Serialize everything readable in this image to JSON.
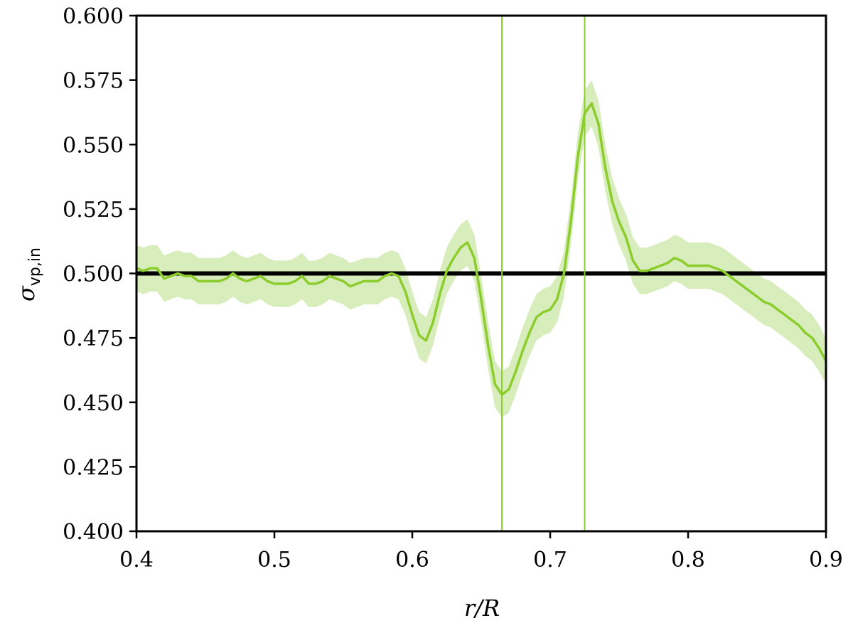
{
  "chart_data": {
    "type": "line",
    "xlabel": "r/R",
    "ylabel": "σvp,in",
    "ylabel_main": "σ",
    "ylabel_sub": "vp,in",
    "xlim": [
      0.4,
      0.9
    ],
    "ylim": [
      0.4,
      0.6
    ],
    "x_ticks": [
      0.4,
      0.5,
      0.6,
      0.7,
      0.8,
      0.9
    ],
    "x_tick_labels": [
      "0.4",
      "0.5",
      "0.6",
      "0.7",
      "0.8",
      "0.9"
    ],
    "y_ticks": [
      0.4,
      0.425,
      0.45,
      0.475,
      0.5,
      0.525,
      0.55,
      0.575,
      0.6
    ],
    "y_tick_labels": [
      "0.400",
      "0.425",
      "0.450",
      "0.475",
      "0.500",
      "0.525",
      "0.550",
      "0.575",
      "0.600"
    ],
    "grid": false,
    "colors": {
      "series": "#8ccc2c",
      "band": "#d8edbc",
      "reference": "#000000"
    },
    "reference_line": {
      "y": 0.5
    },
    "vertical_lines": [
      0.665,
      0.725
    ],
    "series": [
      {
        "x": [
          0.4,
          0.405,
          0.41,
          0.415,
          0.42,
          0.425,
          0.43,
          0.435,
          0.44,
          0.445,
          0.45,
          0.455,
          0.46,
          0.465,
          0.47,
          0.475,
          0.48,
          0.485,
          0.49,
          0.495,
          0.5,
          0.505,
          0.51,
          0.515,
          0.52,
          0.525,
          0.53,
          0.535,
          0.54,
          0.545,
          0.55,
          0.555,
          0.56,
          0.565,
          0.57,
          0.575,
          0.58,
          0.585,
          0.59,
          0.595,
          0.6,
          0.605,
          0.61,
          0.615,
          0.62,
          0.625,
          0.63,
          0.635,
          0.64,
          0.645,
          0.65,
          0.655,
          0.66,
          0.665,
          0.67,
          0.675,
          0.68,
          0.685,
          0.69,
          0.695,
          0.7,
          0.705,
          0.71,
          0.715,
          0.72,
          0.725,
          0.73,
          0.735,
          0.74,
          0.745,
          0.75,
          0.755,
          0.76,
          0.765,
          0.77,
          0.775,
          0.78,
          0.785,
          0.79,
          0.795,
          0.8,
          0.805,
          0.81,
          0.815,
          0.82,
          0.825,
          0.83,
          0.835,
          0.84,
          0.845,
          0.85,
          0.855,
          0.86,
          0.865,
          0.87,
          0.875,
          0.88,
          0.885,
          0.89,
          0.895,
          0.9
        ],
        "y": [
          0.502,
          0.501,
          0.502,
          0.502,
          0.498,
          0.499,
          0.5,
          0.499,
          0.499,
          0.497,
          0.497,
          0.497,
          0.497,
          0.498,
          0.5,
          0.498,
          0.497,
          0.498,
          0.499,
          0.497,
          0.496,
          0.496,
          0.496,
          0.497,
          0.499,
          0.496,
          0.496,
          0.497,
          0.499,
          0.498,
          0.497,
          0.495,
          0.496,
          0.497,
          0.497,
          0.497,
          0.499,
          0.5,
          0.499,
          0.493,
          0.484,
          0.476,
          0.474,
          0.481,
          0.492,
          0.501,
          0.506,
          0.51,
          0.512,
          0.506,
          0.49,
          0.472,
          0.457,
          0.453,
          0.455,
          0.462,
          0.47,
          0.477,
          0.483,
          0.485,
          0.486,
          0.49,
          0.5,
          0.52,
          0.545,
          0.562,
          0.566,
          0.558,
          0.541,
          0.528,
          0.52,
          0.514,
          0.505,
          0.501,
          0.501,
          0.502,
          0.503,
          0.504,
          0.506,
          0.505,
          0.503,
          0.503,
          0.503,
          0.503,
          0.502,
          0.501,
          0.499,
          0.497,
          0.495,
          0.493,
          0.491,
          0.489,
          0.488,
          0.486,
          0.484,
          0.482,
          0.48,
          0.477,
          0.475,
          0.471,
          0.466
        ],
        "band_halfwidth": 0.009
      }
    ]
  }
}
